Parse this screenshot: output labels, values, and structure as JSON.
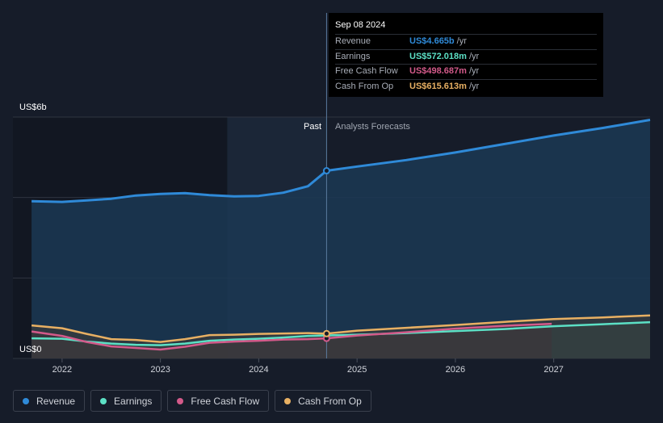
{
  "chart_data": {
    "type": "area",
    "y_axis_labels": [
      "US$6b",
      "US$0"
    ],
    "ylim": [
      0,
      6
    ],
    "xlim": [
      2021.5,
      2027.98
    ],
    "x_ticks": [
      2022,
      2023,
      2024,
      2025,
      2026,
      2027
    ],
    "x_tick_labels": [
      "2022",
      "2023",
      "2024",
      "2025",
      "2026",
      "2027"
    ],
    "grid": true,
    "divider_x": 2024.69,
    "past_label": "Past",
    "forecast_label": "Analysts Forecasts",
    "series": [
      {
        "name": "Revenue",
        "color": "#2f8ad8",
        "x": [
          2021.69,
          2022.0,
          2022.25,
          2022.5,
          2022.75,
          2023.0,
          2023.25,
          2023.5,
          2023.75,
          2024.0,
          2024.25,
          2024.5,
          2024.69,
          2025.0,
          2025.5,
          2026.0,
          2026.5,
          2027.0,
          2027.5,
          2027.98
        ],
        "y": [
          3.91,
          3.89,
          3.93,
          3.97,
          4.05,
          4.09,
          4.11,
          4.06,
          4.03,
          4.04,
          4.12,
          4.28,
          4.665,
          4.77,
          4.93,
          5.12,
          5.33,
          5.54,
          5.73,
          5.93
        ]
      },
      {
        "name": "Earnings",
        "color": "#5ce0c5",
        "x": [
          2021.69,
          2022.0,
          2022.25,
          2022.5,
          2022.75,
          2023.0,
          2023.25,
          2023.5,
          2023.75,
          2024.0,
          2024.25,
          2024.5,
          2024.69,
          2025.0,
          2025.5,
          2026.0,
          2026.5,
          2027.0,
          2027.5,
          2027.98
        ],
        "y": [
          0.5,
          0.49,
          0.42,
          0.37,
          0.34,
          0.33,
          0.37,
          0.44,
          0.47,
          0.49,
          0.52,
          0.56,
          0.572,
          0.59,
          0.63,
          0.68,
          0.73,
          0.8,
          0.85,
          0.9
        ]
      },
      {
        "name": "Free Cash Flow",
        "color": "#d35a8a",
        "x": [
          2021.69,
          2022.0,
          2022.25,
          2022.5,
          2022.75,
          2023.0,
          2023.25,
          2023.5,
          2023.75,
          2024.0,
          2024.25,
          2024.5,
          2024.69,
          2025.0,
          2025.5,
          2026.0,
          2026.5,
          2026.98
        ],
        "y": [
          0.67,
          0.56,
          0.41,
          0.3,
          0.26,
          0.22,
          0.29,
          0.39,
          0.42,
          0.44,
          0.47,
          0.48,
          0.499,
          0.57,
          0.65,
          0.74,
          0.81,
          0.86
        ]
      },
      {
        "name": "Cash From Op",
        "color": "#e8b063",
        "x": [
          2021.69,
          2022.0,
          2022.25,
          2022.5,
          2022.75,
          2023.0,
          2023.25,
          2023.5,
          2023.75,
          2024.0,
          2024.25,
          2024.5,
          2024.69,
          2025.0,
          2025.5,
          2026.0,
          2026.5,
          2027.0,
          2027.5,
          2027.98
        ],
        "y": [
          0.82,
          0.75,
          0.61,
          0.48,
          0.46,
          0.41,
          0.48,
          0.58,
          0.59,
          0.61,
          0.62,
          0.63,
          0.616,
          0.69,
          0.76,
          0.83,
          0.91,
          0.98,
          1.02,
          1.07
        ]
      }
    ],
    "tooltip": {
      "date": "Sep 08 2024",
      "rows": [
        {
          "label": "Revenue",
          "value": "US$4.665b",
          "unit": "/yr",
          "color": "#2f8ad8"
        },
        {
          "label": "Earnings",
          "value": "US$572.018m",
          "unit": "/yr",
          "color": "#5ce0c5"
        },
        {
          "label": "Free Cash Flow",
          "value": "US$498.687m",
          "unit": "/yr",
          "color": "#d35a8a"
        },
        {
          "label": "Cash From Op",
          "value": "US$615.613m",
          "unit": "/yr",
          "color": "#e8b063"
        }
      ]
    }
  },
  "legend": [
    {
      "label": "Revenue",
      "color": "#2f8ad8"
    },
    {
      "label": "Earnings",
      "color": "#5ce0c5"
    },
    {
      "label": "Free Cash Flow",
      "color": "#d35a8a"
    },
    {
      "label": "Cash From Op",
      "color": "#e8b063"
    }
  ]
}
